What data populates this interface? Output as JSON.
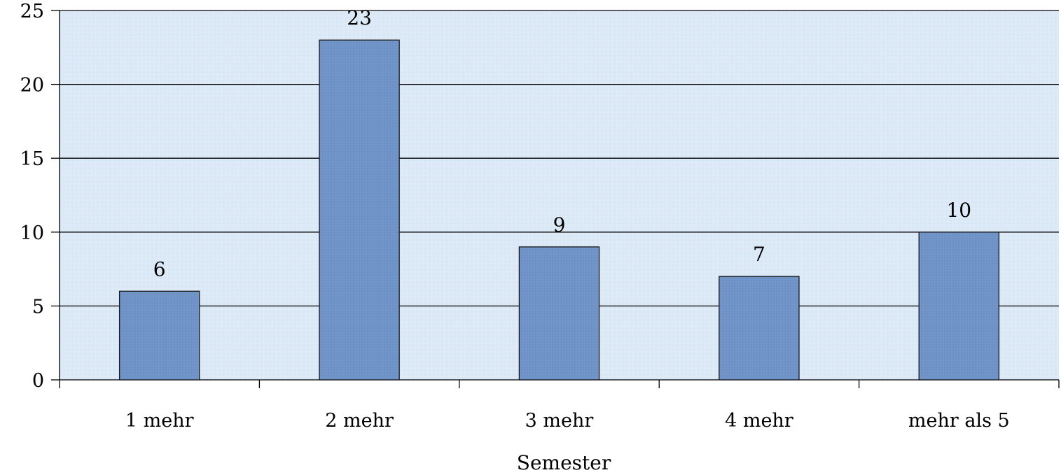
{
  "chart_data": {
    "type": "bar",
    "categories": [
      "1 mehr",
      "2 mehr",
      "3 mehr",
      "4 mehr",
      "mehr als 5"
    ],
    "values": [
      6,
      23,
      9,
      7,
      10
    ],
    "data_labels": [
      "6",
      "23",
      "9",
      "7",
      "10"
    ],
    "xlabel": "Semester",
    "ylabel": "",
    "ylim": [
      0,
      25
    ],
    "yticks": [
      "0",
      "5",
      "10",
      "15",
      "20",
      "25"
    ],
    "grid": true,
    "colors": {
      "plot_background": "#dce9f6",
      "bar_fill": "#7094c8",
      "bar_stroke": "#1a1a1a",
      "gridline": "#000000"
    }
  }
}
